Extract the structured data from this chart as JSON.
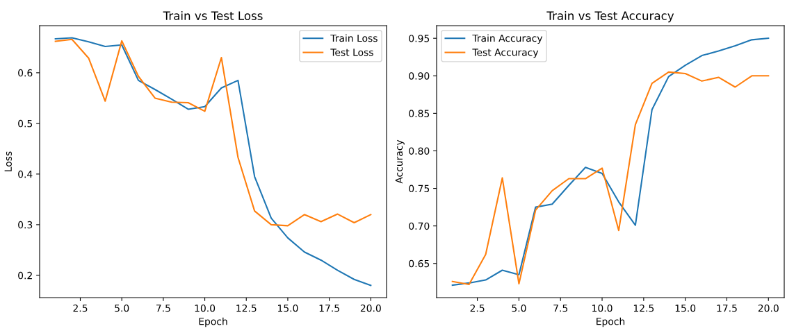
{
  "chart_data": [
    {
      "type": "line",
      "title": "Train vs Test Loss",
      "xlabel": "Epoch",
      "ylabel": "Loss",
      "x": [
        1,
        2,
        3,
        4,
        5,
        6,
        7,
        8,
        9,
        10,
        11,
        12,
        13,
        14,
        15,
        16,
        17,
        18,
        19,
        20
      ],
      "series": [
        {
          "name": "Train Loss",
          "color": "#1f77b4",
          "values": [
            0.667,
            0.669,
            0.661,
            0.652,
            0.655,
            0.585,
            0.567,
            0.548,
            0.528,
            0.533,
            0.57,
            0.585,
            0.395,
            0.313,
            0.274,
            0.246,
            0.23,
            0.21,
            0.192,
            0.18
          ]
        },
        {
          "name": "Test Loss",
          "color": "#ff7f0e",
          "values": [
            0.662,
            0.666,
            0.629,
            0.544,
            0.663,
            0.593,
            0.55,
            0.542,
            0.541,
            0.524,
            0.63,
            0.433,
            0.327,
            0.3,
            0.298,
            0.32,
            0.306,
            0.321,
            0.304,
            0.32
          ]
        }
      ],
      "xlim": [
        0.05,
        20.95
      ],
      "xticks": [
        {
          "value": 2.5,
          "label": "2.5"
        },
        {
          "value": 5,
          "label": "5.0"
        },
        {
          "value": 7.5,
          "label": "7.5"
        },
        {
          "value": 10,
          "label": "10.0"
        },
        {
          "value": 12.5,
          "label": "12.5"
        },
        {
          "value": 15,
          "label": "15.0"
        },
        {
          "value": 17.5,
          "label": "17.5"
        },
        {
          "value": 20,
          "label": "20.0"
        }
      ],
      "ylim": [
        0.156,
        0.693
      ],
      "yticks": [
        0.2,
        0.3,
        0.4,
        0.5,
        0.6
      ],
      "legend": "top right",
      "grid": false,
      "marker": "none",
      "line_style": "solid"
    },
    {
      "type": "line",
      "title": "Train vs Test Accuracy",
      "xlabel": "Epoch",
      "ylabel": "Accuracy",
      "x": [
        1,
        2,
        3,
        4,
        5,
        6,
        7,
        8,
        9,
        10,
        11,
        12,
        13,
        14,
        15,
        16,
        17,
        18,
        19,
        20
      ],
      "series": [
        {
          "name": "Train Accuracy",
          "color": "#1f77b4",
          "values": [
            0.621,
            0.624,
            0.628,
            0.641,
            0.635,
            0.725,
            0.729,
            0.754,
            0.778,
            0.77,
            0.732,
            0.701,
            0.855,
            0.899,
            0.914,
            0.927,
            0.933,
            0.94,
            0.948,
            0.95
          ]
        },
        {
          "name": "Test Accuracy",
          "color": "#ff7f0e",
          "values": [
            0.626,
            0.622,
            0.662,
            0.764,
            0.623,
            0.721,
            0.747,
            0.763,
            0.763,
            0.777,
            0.694,
            0.835,
            0.89,
            0.905,
            0.903,
            0.893,
            0.898,
            0.885,
            0.9,
            0.9
          ]
        }
      ],
      "xlim": [
        0.05,
        20.95
      ],
      "xticks": [
        {
          "value": 2.5,
          "label": "2.5"
        },
        {
          "value": 5,
          "label": "5.0"
        },
        {
          "value": 7.5,
          "label": "7.5"
        },
        {
          "value": 10,
          "label": "10.0"
        },
        {
          "value": 12.5,
          "label": "12.5"
        },
        {
          "value": 15,
          "label": "15.0"
        },
        {
          "value": 17.5,
          "label": "17.5"
        },
        {
          "value": 20,
          "label": "20.0"
        }
      ],
      "ylim": [
        0.6045,
        0.9668
      ],
      "yticks": [
        {
          "value": 0.65,
          "label": "0.65"
        },
        {
          "value": 0.7,
          "label": "0.70"
        },
        {
          "value": 0.75,
          "label": "0.75"
        },
        {
          "value": 0.8,
          "label": "0.80"
        },
        {
          "value": 0.85,
          "label": "0.85"
        },
        {
          "value": 0.9,
          "label": "0.90"
        },
        {
          "value": 0.95,
          "label": "0.95"
        }
      ],
      "legend": "top left",
      "grid": false,
      "marker": "none",
      "line_style": "solid"
    }
  ]
}
